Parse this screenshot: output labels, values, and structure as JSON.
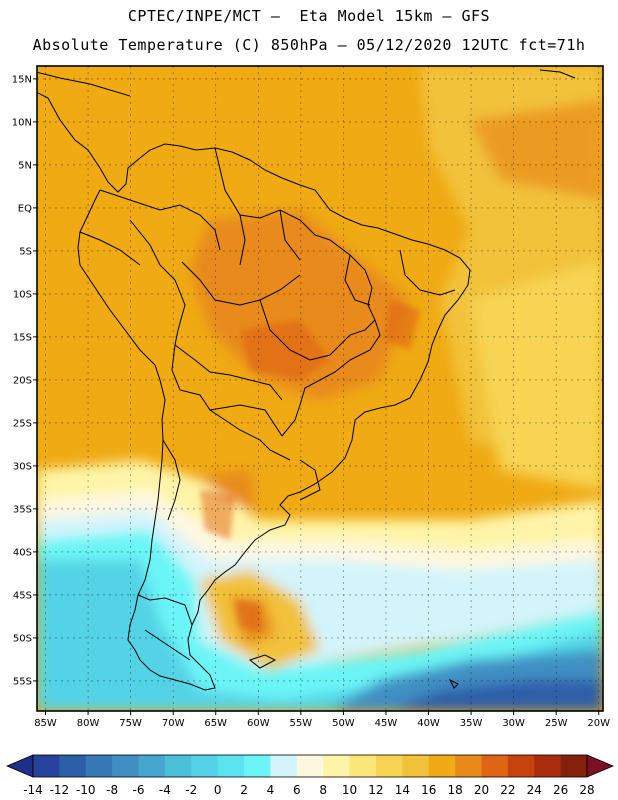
{
  "title_line1": "CPTEC/INPE/MCT –  Eta Model 15km – GFS",
  "title_line2": "Absolute Temperature (C) 850hPa – 05/12/2020 12UTC fct=71h",
  "lat_labels": [
    "15N",
    "10N",
    "5N",
    "EQ",
    "5S",
    "10S",
    "15S",
    "20S",
    "25S",
    "30S",
    "35S",
    "40S",
    "45S",
    "50S",
    "55S"
  ],
  "lat_values": [
    15,
    10,
    5,
    0,
    -5,
    -10,
    -15,
    -20,
    -25,
    -30,
    -35,
    -40,
    -45,
    -50,
    -55
  ],
  "lon_labels": [
    "85W",
    "80W",
    "75W",
    "70W",
    "65W",
    "60W",
    "55W",
    "50W",
    "45W",
    "40W",
    "35W",
    "30W",
    "25W",
    "20W"
  ],
  "lon_values": [
    -85,
    -80,
    -75,
    -70,
    -65,
    -60,
    -55,
    -50,
    -45,
    -40,
    -35,
    -30,
    -25,
    -20
  ],
  "colorbar": {
    "ticks": [
      "-14",
      "-12",
      "-10",
      "-8",
      "-6",
      "-4",
      "-2",
      "0",
      "2",
      "4",
      "6",
      "8",
      "10",
      "12",
      "14",
      "16",
      "18",
      "20",
      "22",
      "24",
      "26",
      "28"
    ],
    "colors": [
      "#26449b",
      "#2d5fa8",
      "#3779b7",
      "#3f8fc3",
      "#45a7cf",
      "#4bbfda",
      "#55d3e6",
      "#5be4f0",
      "#6cf5f6",
      "#d3f4fb",
      "#fff8e0",
      "#fff4a8",
      "#fbe67a",
      "#f7d452",
      "#f2c23a",
      "#efaa14",
      "#e88a1a",
      "#df6414",
      "#c7430e",
      "#a92c0c",
      "#84200c"
    ],
    "under_color": "#1f3089",
    "over_color": "#7a0f25"
  },
  "map_data": {
    "type": "filled_contour_map",
    "variable": "Absolute Temperature",
    "units": "C",
    "level": "850hPa",
    "extent": {
      "lon": [
        -86,
        -19.5
      ],
      "lat": [
        -58.5,
        16.5
      ]
    }
  }
}
